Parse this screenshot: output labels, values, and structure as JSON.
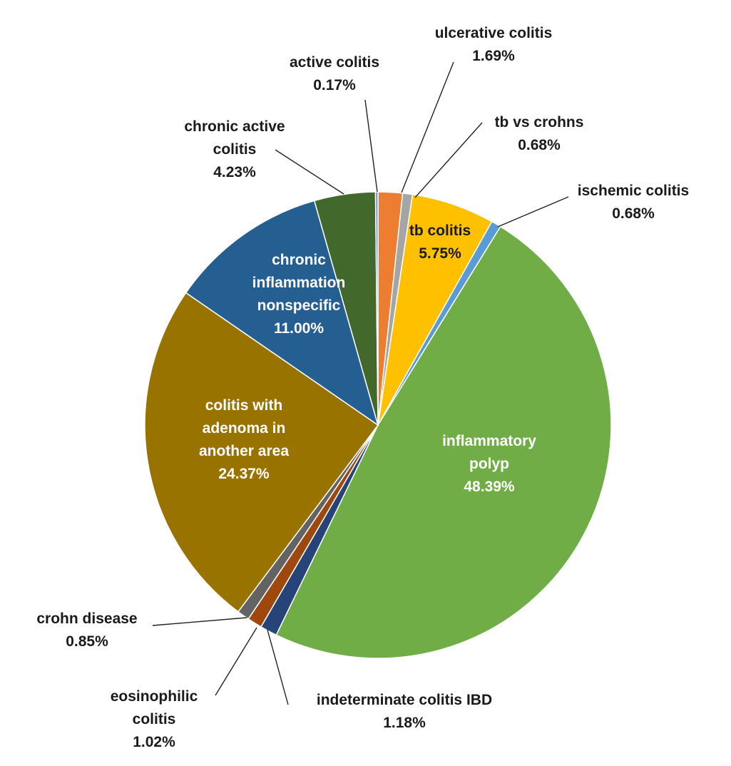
{
  "chart_data": {
    "type": "pie",
    "title": "",
    "start_angle_deg": 0,
    "direction": "clockwise",
    "slices": [
      {
        "key": "ulcerative",
        "label_lines": [
          "ulcerative colitis",
          "1.69%"
        ],
        "value": 1.69,
        "color": "#ed7d31"
      },
      {
        "key": "tb_vs_crohns",
        "label_lines": [
          "tb vs crohns",
          "0.68%"
        ],
        "value": 0.68,
        "color": "#a5a5a5"
      },
      {
        "key": "tb_colitis",
        "label_lines": [
          "tb colitis",
          "5.75%"
        ],
        "value": 5.75,
        "color": "#ffc000"
      },
      {
        "key": "ischemic",
        "label_lines": [
          "ischemic colitis",
          "0.68%"
        ],
        "value": 0.68,
        "color": "#5b9bd5"
      },
      {
        "key": "inflammatory_polyp",
        "label_lines": [
          "inflammatory",
          "polyp",
          "48.39%"
        ],
        "value": 48.39,
        "color": "#70ad47"
      },
      {
        "key": "indeterminate",
        "label_lines": [
          "indeterminate colitis IBD",
          "1.18%"
        ],
        "value": 1.18,
        "color": "#264478"
      },
      {
        "key": "eosinophilic",
        "label_lines": [
          "eosinophilic",
          "colitis",
          "1.02%"
        ],
        "value": 1.02,
        "color": "#9e480e"
      },
      {
        "key": "crohn",
        "label_lines": [
          "crohn disease",
          "0.85%"
        ],
        "value": 0.85,
        "color": "#636363"
      },
      {
        "key": "adenoma",
        "label_lines": [
          "colitis with",
          "adenoma in",
          "another area",
          "24.37%"
        ],
        "value": 24.37,
        "color": "#997300"
      },
      {
        "key": "chronic_nonspecific",
        "label_lines": [
          "chronic",
          "inflammation",
          "nonspecific",
          "11.00%"
        ],
        "value": 11.0,
        "color": "#255e91"
      },
      {
        "key": "chronic_active",
        "label_lines": [
          "chronic active",
          "colitis",
          "4.23%"
        ],
        "value": 4.23,
        "color": "#43682b"
      },
      {
        "key": "active",
        "label_lines": [
          "active colitis",
          "0.17%"
        ],
        "value": 0.17,
        "color": "#698ed0"
      }
    ]
  }
}
